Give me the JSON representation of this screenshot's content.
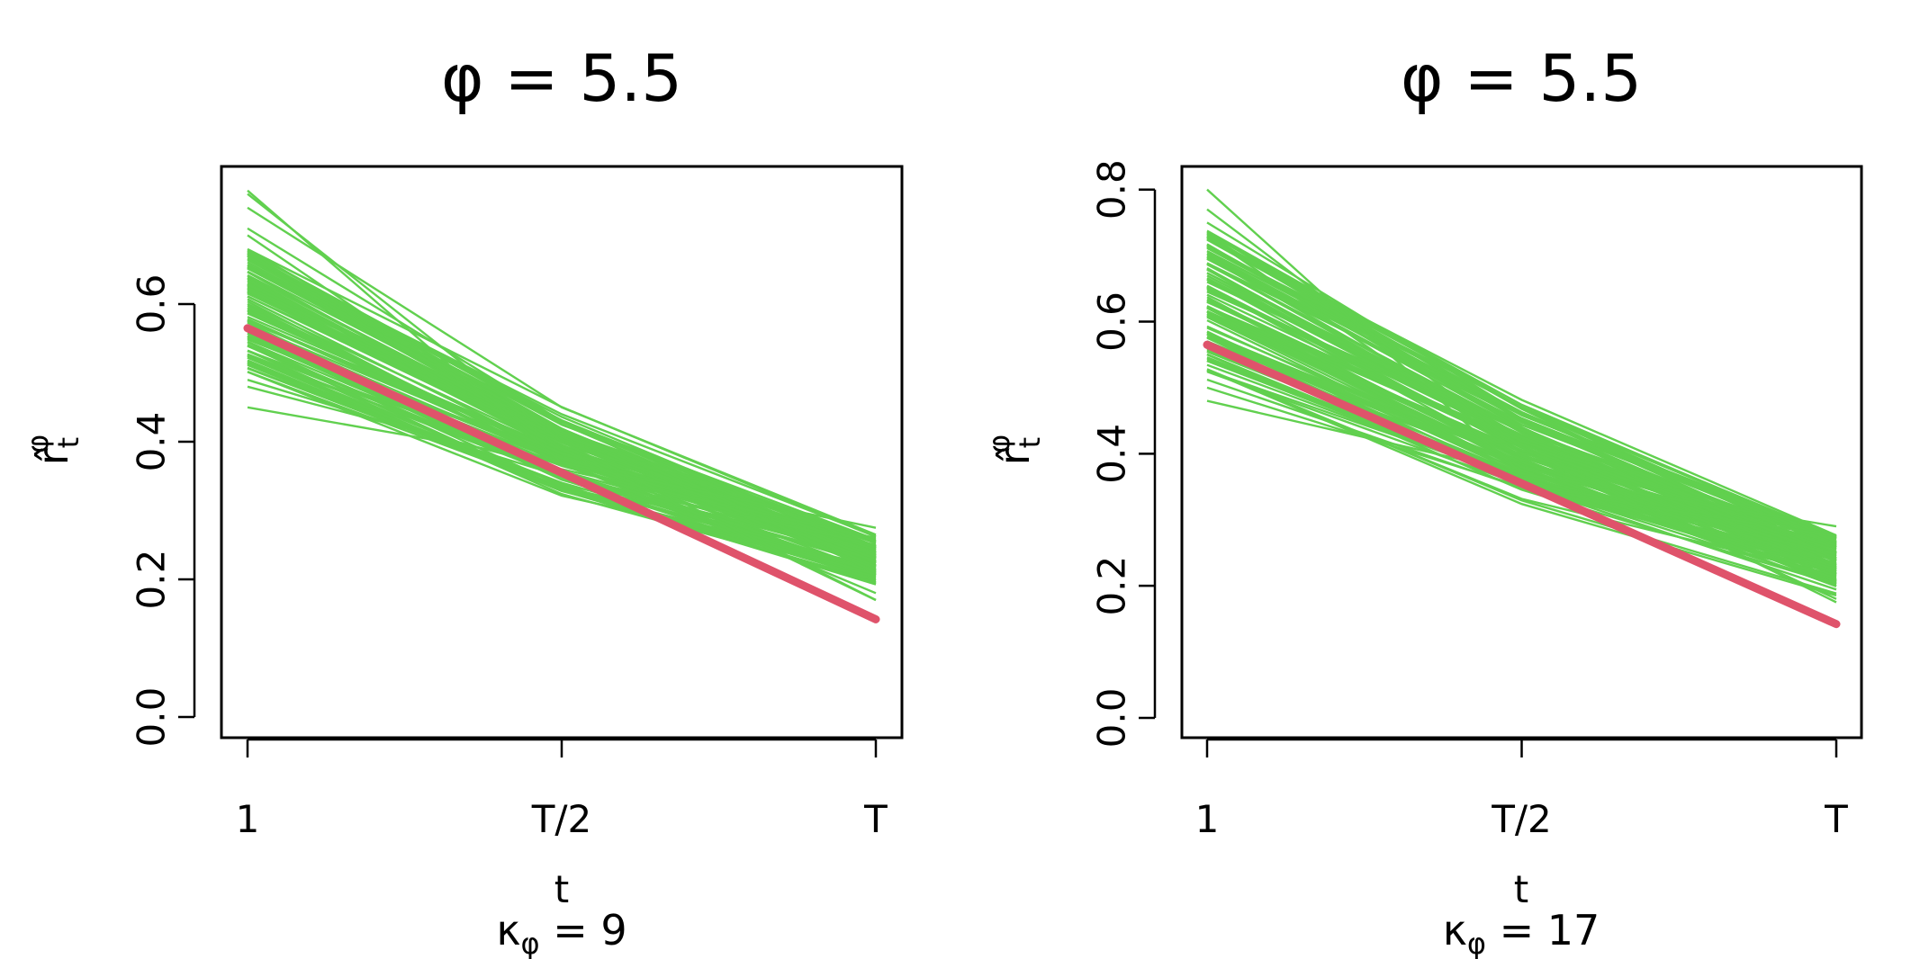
{
  "chart_data": [
    {
      "type": "line",
      "title": "φ = 5.5",
      "xlabel": "t",
      "subtitle_symbol": "κ",
      "subtitle_subscript": "φ",
      "subtitle_value": "= 9",
      "ylabel_symbol": "r̂",
      "ylabel_sub": "t",
      "ylabel_sup": "φ",
      "x_tick_labels": [
        "1",
        "T/2",
        "T"
      ],
      "x": [
        0,
        0.5,
        1
      ],
      "ylim": [
        -0.03,
        0.8
      ],
      "y_ticks": [
        0.0,
        0.2,
        0.4,
        0.6
      ],
      "y_tick_labels": [
        "0.0",
        "0.2",
        "0.4",
        "0.6"
      ],
      "true_series": {
        "name": "true",
        "color": "#df536b",
        "values": [
          0.565,
          0.355,
          0.142
        ]
      },
      "sim_color": "#61d04f",
      "sim_start_range": [
        0.5,
        0.68
      ],
      "sim_end_range": [
        0.19,
        0.265
      ],
      "sim_outliers": [
        [
          0.765,
          0.37,
          0.18
        ],
        [
          0.76,
          0.4,
          0.17
        ],
        [
          0.74,
          0.45,
          0.265
        ],
        [
          0.71,
          0.43,
          0.21
        ],
        [
          0.45,
          0.37,
          0.275
        ],
        [
          0.48,
          0.36,
          0.26
        ],
        [
          0.49,
          0.35,
          0.25
        ],
        [
          0.7,
          0.39,
          0.17
        ]
      ],
      "sim_count": 110
    },
    {
      "type": "line",
      "title": "φ = 5.5",
      "xlabel": "t",
      "subtitle_symbol": "κ",
      "subtitle_subscript": "φ",
      "subtitle_value": "= 17",
      "ylabel_symbol": "r̂",
      "ylabel_sub": "t",
      "ylabel_sup": "φ",
      "x_tick_labels": [
        "1",
        "T/2",
        "T"
      ],
      "x": [
        0,
        0.5,
        1
      ],
      "ylim": [
        -0.03,
        0.835
      ],
      "y_ticks": [
        0.0,
        0.2,
        0.4,
        0.6,
        0.8
      ],
      "y_tick_labels": [
        "0.0",
        "0.2",
        "0.4",
        "0.6",
        "0.8"
      ],
      "true_series": {
        "name": "true",
        "color": "#df536b",
        "values": [
          0.565,
          0.355,
          0.142
        ]
      },
      "sim_color": "#61d04f",
      "sim_start_range": [
        0.51,
        0.74
      ],
      "sim_end_range": [
        0.18,
        0.285
      ],
      "sim_outliers": [
        [
          0.8,
          0.37,
          0.2
        ],
        [
          0.77,
          0.41,
          0.175
        ],
        [
          0.75,
          0.46,
          0.27
        ],
        [
          0.48,
          0.37,
          0.29
        ],
        [
          0.5,
          0.35,
          0.275
        ],
        [
          0.73,
          0.4,
          0.18
        ]
      ],
      "sim_count": 110
    }
  ]
}
